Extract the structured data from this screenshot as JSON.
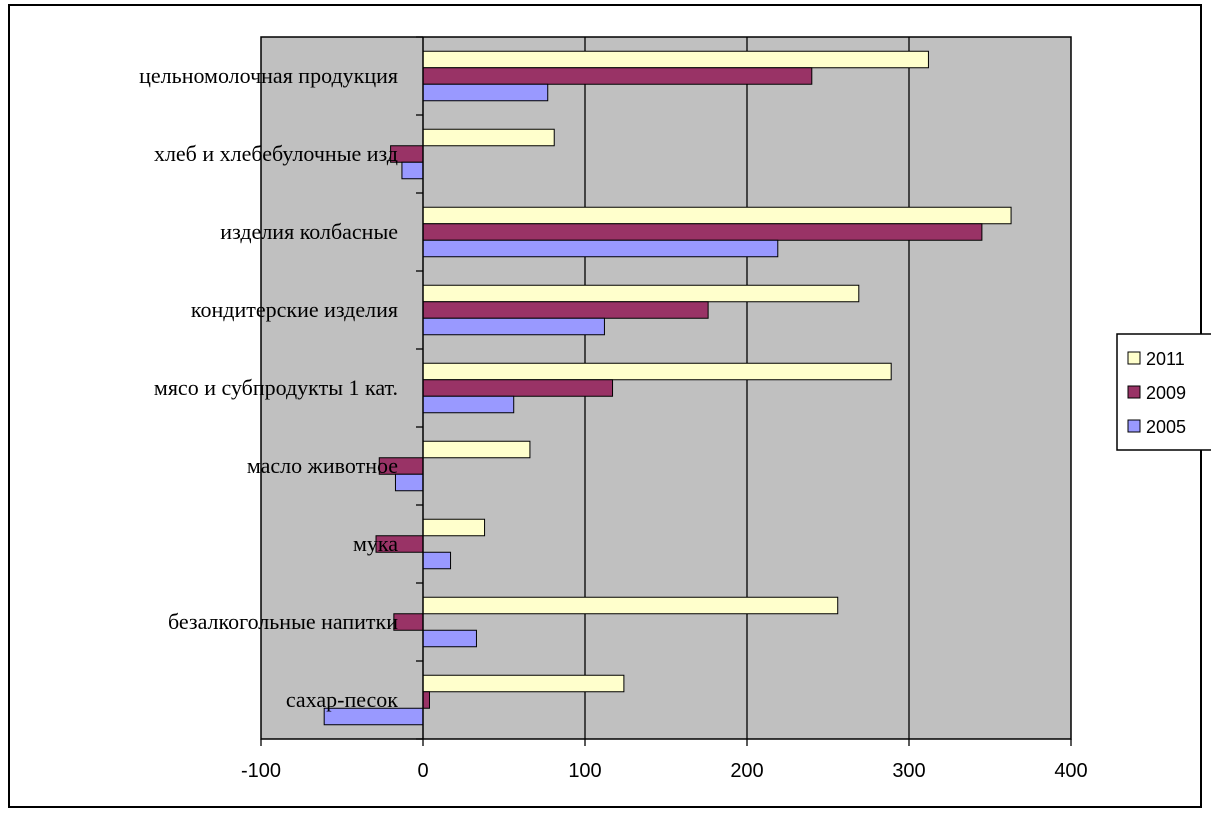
{
  "chart_data": {
    "type": "bar",
    "orientation": "horizontal",
    "title": "",
    "xlabel": "",
    "ylabel": "",
    "xlim": [
      -100,
      400
    ],
    "x_ticks": [
      "-100",
      "0",
      "100",
      "200",
      "300",
      "400"
    ],
    "grid": "vertical gridlines on",
    "legend_position": "right",
    "categories": [
      "цельномолочная продукция",
      "хлеб и хлебебулочные изд",
      "изделия колбасные",
      "кондитерские изделия",
      "мясо и субпродукты 1 кат.",
      "масло животное",
      "мука",
      "безалкогольные напитки",
      "сахар-песок"
    ],
    "series": [
      {
        "name": "2011",
        "color": "#ffffcc",
        "values": [
          312,
          81,
          363,
          269,
          289,
          66,
          38,
          256,
          124
        ]
      },
      {
        "name": "2009",
        "color": "#993366",
        "values": [
          240,
          -20,
          345,
          176,
          117,
          -27,
          -29,
          -18,
          4
        ]
      },
      {
        "name": "2005",
        "color": "#9999ff",
        "values": [
          77,
          -13,
          219,
          112,
          56,
          -17,
          17,
          33,
          -61
        ]
      }
    ]
  },
  "colors": {
    "plot_background": "#c0c0c0",
    "gridline": "#000000",
    "border": "#000000"
  }
}
